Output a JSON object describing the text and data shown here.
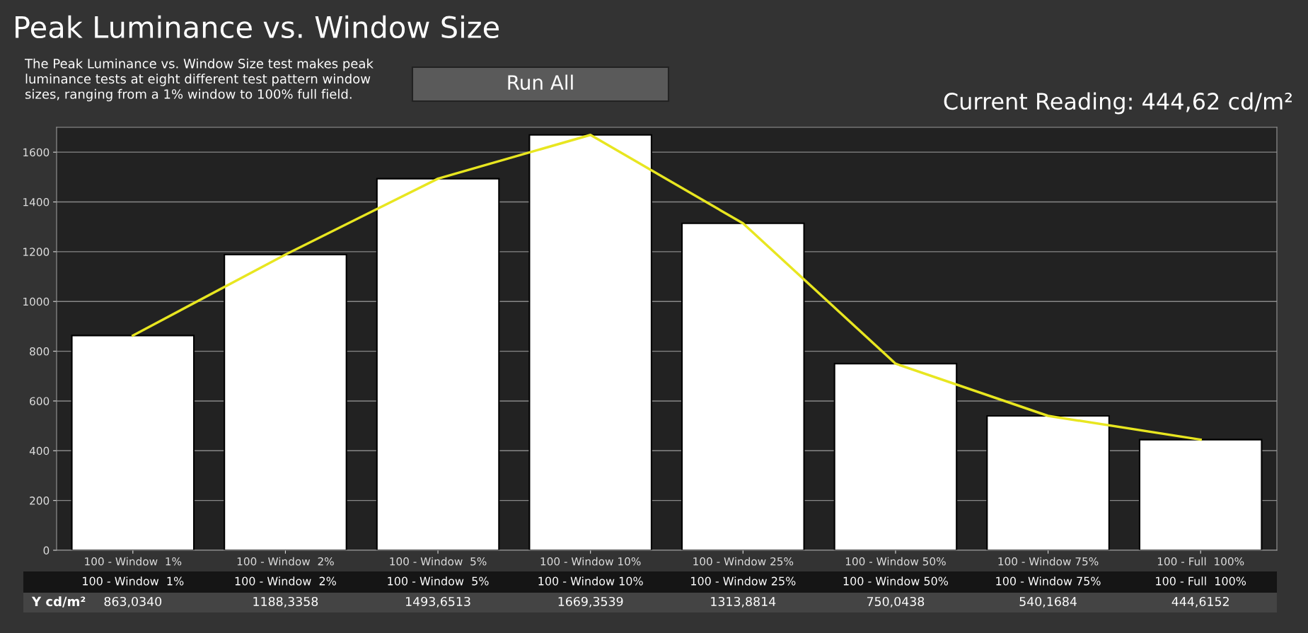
{
  "chart_data": {
    "type": "bar",
    "title": "Peak Luminance vs. Window Size",
    "annotations": [
      "The Peak Luminance vs. Window Size test makes peak\nluminance tests at eight different test pattern window\nsizes, ranging from a 1% window to 100% full field.",
      "Run All",
      "Current Reading: 444,62 cd/m²"
    ],
    "categories": [
      "100 - Window  1%",
      "100 - Window  2%",
      "100 - Window  5%",
      "100 - Window 10%",
      "100 - Window 25%",
      "100 - Window 50%",
      "100 - Window 75%",
      "100 - Full  100%"
    ],
    "series": [
      {
        "name": "Y cd/m²",
        "color": "#ffffff",
        "values": [
          863.034,
          1188.3358,
          1493.6513,
          1669.3539,
          1313.8814,
          750.0438,
          540.1684,
          444.6152
        ],
        "value_labels": [
          "863,0340",
          "1188,3358",
          "1493,6513",
          "1669,3539",
          "1313,8814",
          "750,0438",
          "540,1684",
          "444,6152"
        ]
      },
      {
        "type": "line",
        "color": "#e8e620",
        "values": [
          863.034,
          1188.3358,
          1493.6513,
          1669.3539,
          1313.8814,
          750.0438,
          540.1684,
          444.6152
        ]
      }
    ],
    "ylim": [
      0,
      1700
    ],
    "yticks": [
      0,
      200,
      400,
      600,
      800,
      1000,
      1200,
      1400,
      1600
    ],
    "grid": "y",
    "legend": false
  }
}
